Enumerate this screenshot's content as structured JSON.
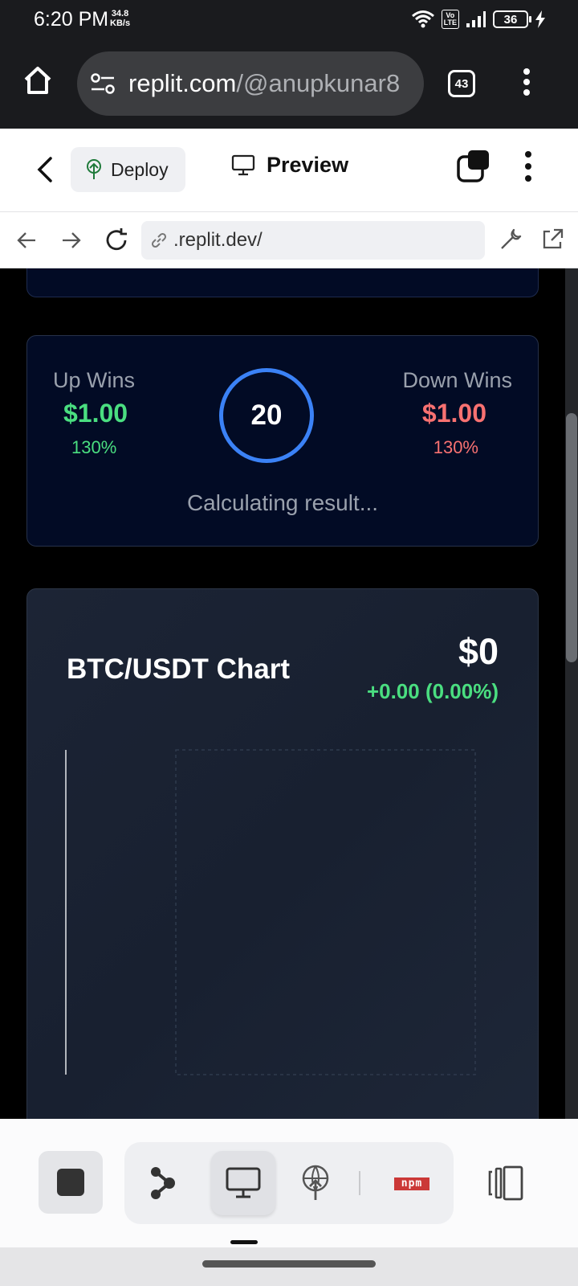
{
  "status_bar": {
    "time": "6:20 PM",
    "speed_value": "34.8",
    "speed_unit": "KB/s",
    "volte": "Vo\nLTE",
    "battery": "36"
  },
  "browser": {
    "url_host": "replit.com",
    "url_path": "/@anupkunar8",
    "tab_count": "43"
  },
  "replit": {
    "deploy_label": "Deploy",
    "preview_label": "Preview",
    "inner_url": ".replit.dev/"
  },
  "bet": {
    "up_label": "Up Wins",
    "up_amount": "$1.00",
    "up_percent": "130%",
    "down_label": "Down Wins",
    "down_amount": "$1.00",
    "down_percent": "130%",
    "timer": "20",
    "status": "Calculating result..."
  },
  "chart": {
    "title": "BTC/USDT Chart",
    "price": "$0",
    "change": "+0.00 (0.00%)"
  },
  "toolbar": {
    "npm_label": "npm"
  },
  "colors": {
    "up": "#4ade80",
    "down": "#f87171",
    "timer_ring": "#3b82f6",
    "card_bg": "#020b25",
    "npm": "#cb3837"
  },
  "chart_data": {
    "type": "line",
    "title": "BTC/USDT Chart",
    "series": [],
    "x": [],
    "xlabel": "",
    "ylabel": ""
  }
}
